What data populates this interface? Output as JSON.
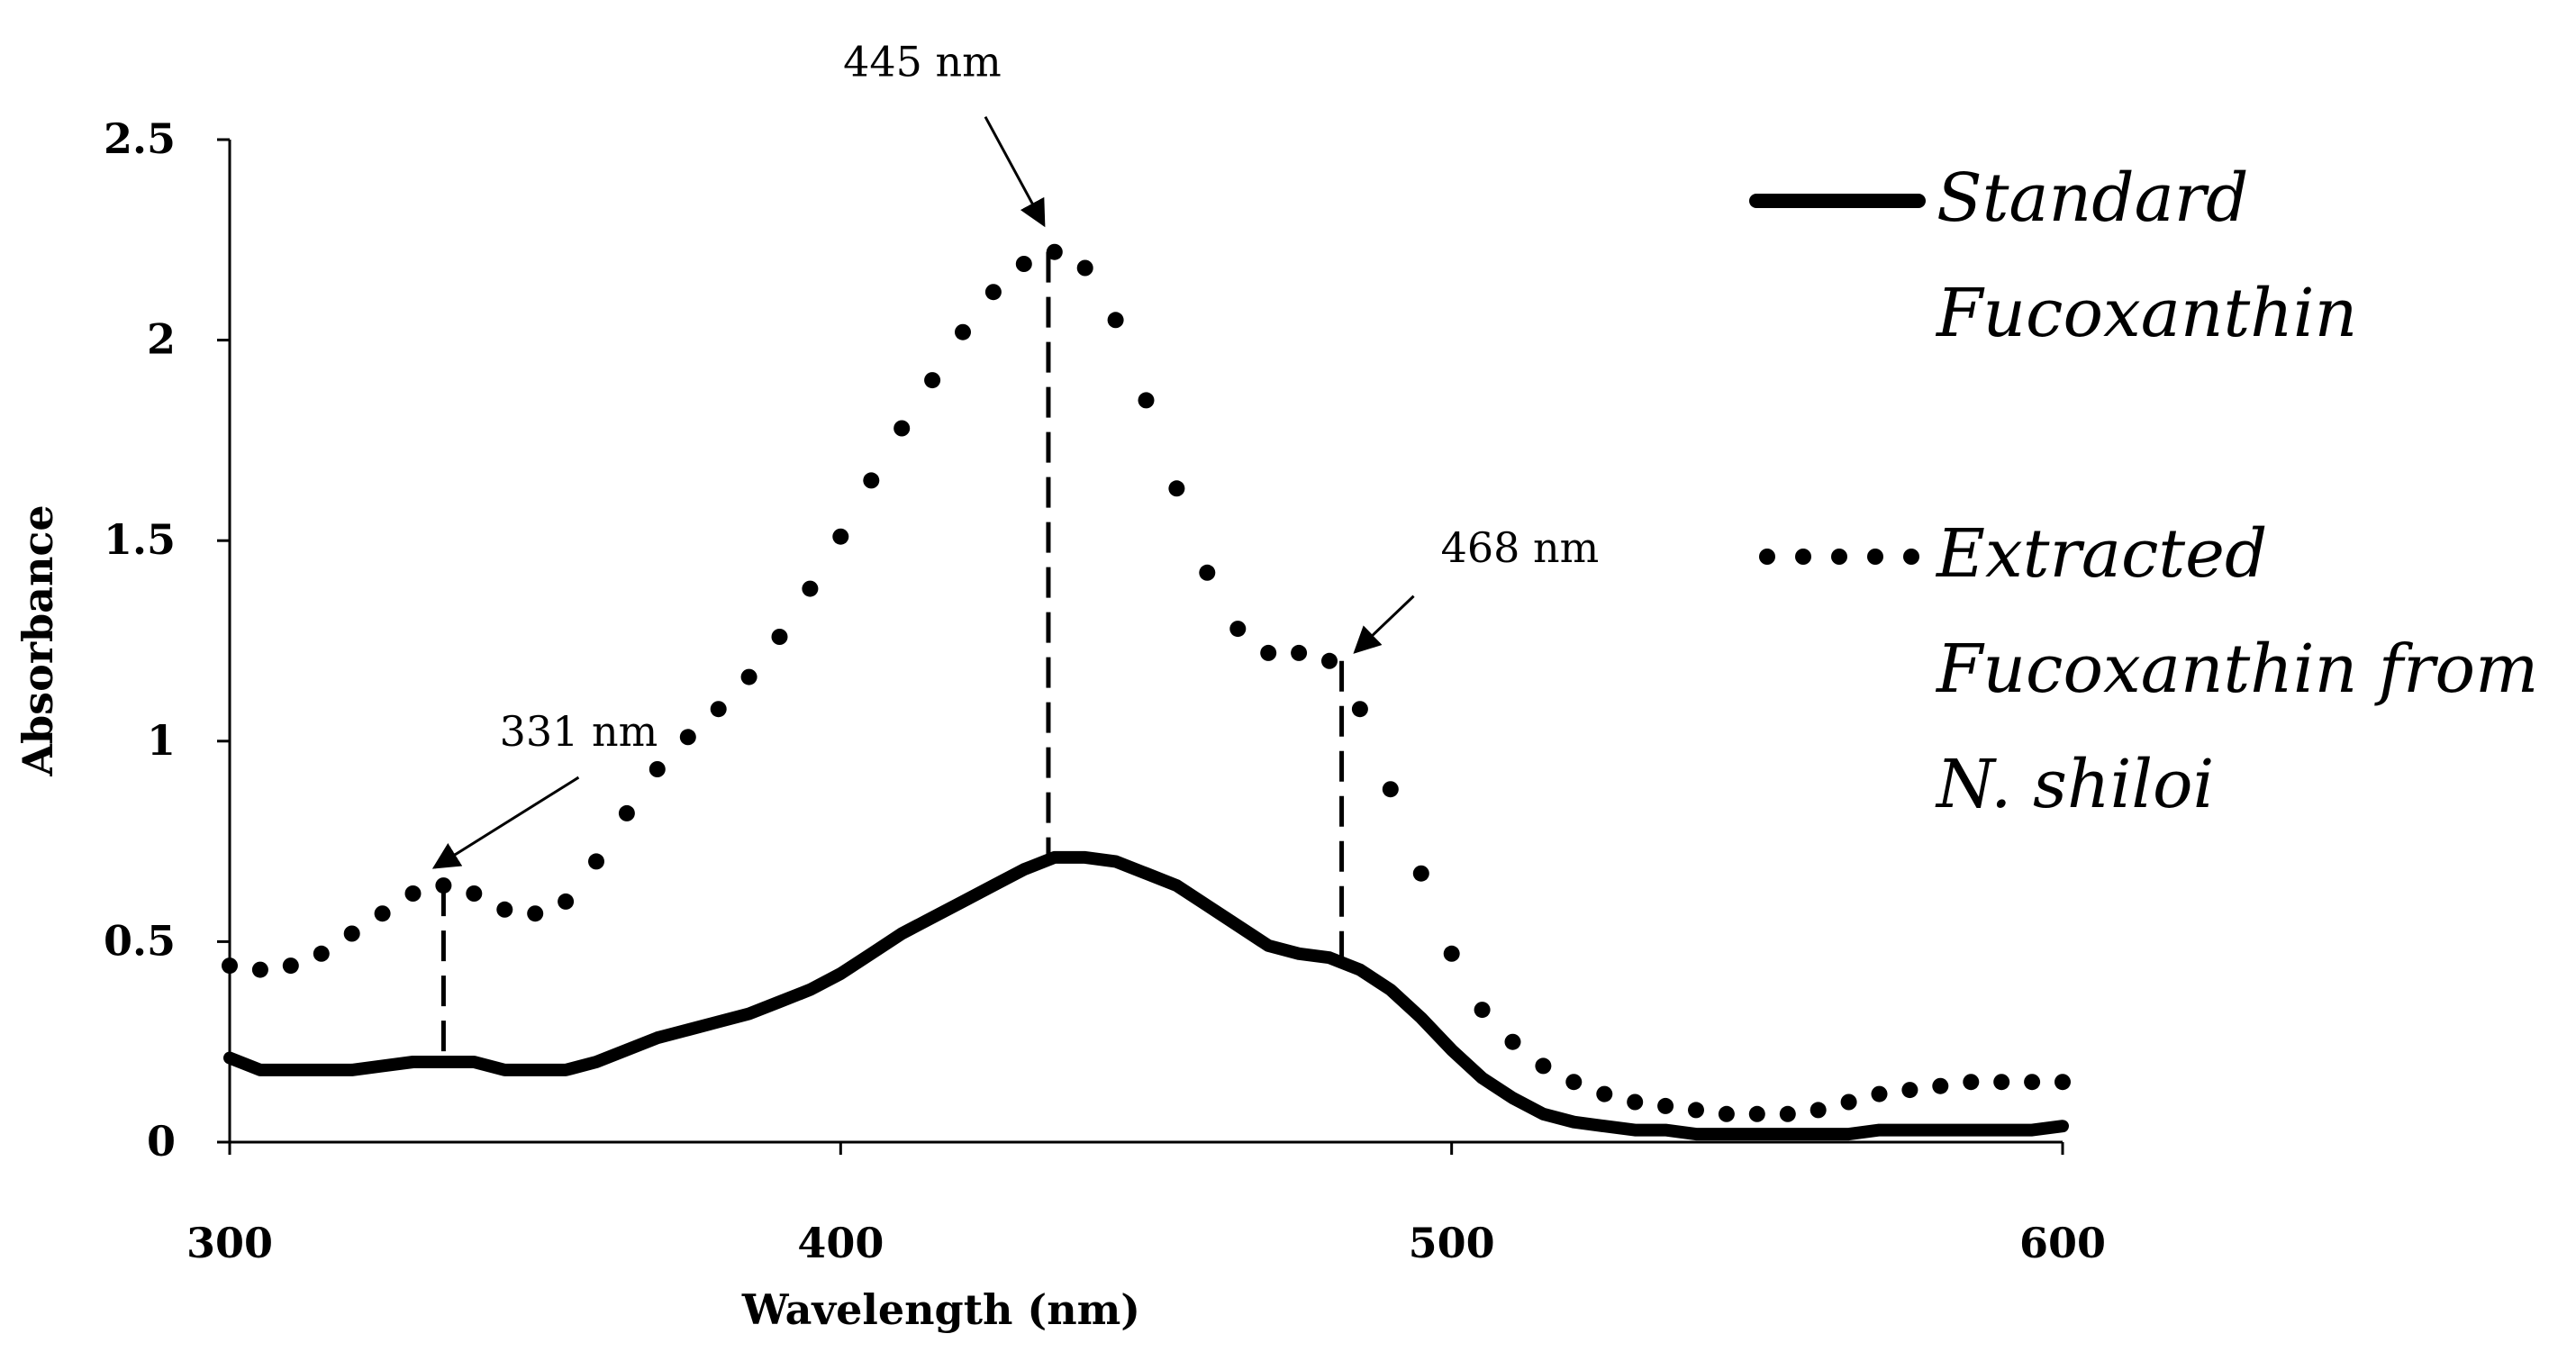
{
  "chart_data": {
    "type": "line",
    "title": "",
    "xlabel": "Wavelength (nm)",
    "ylabel": "Absorbance",
    "xlim": [
      300,
      600
    ],
    "ylim": [
      0,
      2.5
    ],
    "xticks": [
      {
        "value": 300,
        "label": "300"
      },
      {
        "value": 400,
        "label": "400"
      },
      {
        "value": 500,
        "label": "500"
      },
      {
        "value": 600,
        "label": "600"
      }
    ],
    "yticks": [
      {
        "value": 0,
        "label": "0"
      },
      {
        "value": 0.5,
        "label": "0.5"
      },
      {
        "value": 1,
        "label": "1"
      },
      {
        "value": 1.5,
        "label": "1.5"
      },
      {
        "value": 2,
        "label": "2"
      },
      {
        "value": 2.5,
        "label": "2.5"
      }
    ],
    "grid": false,
    "legend_position": "right",
    "series": [
      {
        "name": "Standard Fucoxanthin",
        "legend_lines": [
          "Standard",
          "Fucoxanthin"
        ],
        "style": "solid",
        "color": "#000000",
        "x": [
          300,
          305,
          310,
          315,
          320,
          325,
          330,
          335,
          340,
          345,
          350,
          355,
          360,
          365,
          370,
          375,
          380,
          385,
          390,
          395,
          400,
          405,
          410,
          415,
          420,
          425,
          430,
          435,
          440,
          445,
          450,
          455,
          460,
          465,
          470,
          475,
          480,
          485,
          490,
          495,
          500,
          505,
          510,
          515,
          520,
          525,
          530,
          535,
          540,
          545,
          550,
          555,
          560,
          565,
          570,
          575,
          580,
          585,
          590,
          595,
          600
        ],
        "y": [
          0.21,
          0.18,
          0.18,
          0.18,
          0.18,
          0.19,
          0.2,
          0.2,
          0.2,
          0.18,
          0.18,
          0.18,
          0.2,
          0.23,
          0.26,
          0.28,
          0.3,
          0.32,
          0.35,
          0.38,
          0.42,
          0.47,
          0.52,
          0.56,
          0.6,
          0.64,
          0.68,
          0.71,
          0.71,
          0.7,
          0.67,
          0.64,
          0.59,
          0.54,
          0.49,
          0.47,
          0.46,
          0.43,
          0.38,
          0.31,
          0.23,
          0.16,
          0.11,
          0.07,
          0.05,
          0.04,
          0.03,
          0.03,
          0.02,
          0.02,
          0.02,
          0.02,
          0.02,
          0.02,
          0.03,
          0.03,
          0.03,
          0.03,
          0.03,
          0.03,
          0.04
        ]
      },
      {
        "name": "Extracted Fucoxanthin from N. shiloi",
        "legend_lines": [
          "Extracted",
          "Fucoxanthin from",
          "N. shiloi"
        ],
        "style": "dotted",
        "color": "#000000",
        "x": [
          300,
          305,
          310,
          315,
          320,
          325,
          330,
          335,
          340,
          345,
          350,
          355,
          360,
          365,
          370,
          375,
          380,
          385,
          390,
          395,
          400,
          405,
          410,
          415,
          420,
          425,
          430,
          435,
          440,
          445,
          450,
          455,
          460,
          465,
          470,
          475,
          480,
          485,
          490,
          495,
          500,
          505,
          510,
          515,
          520,
          525,
          530,
          535,
          540,
          545,
          550,
          555,
          560,
          565,
          570,
          575,
          580,
          585,
          590,
          595,
          600
        ],
        "y": [
          0.44,
          0.43,
          0.44,
          0.47,
          0.52,
          0.57,
          0.62,
          0.64,
          0.62,
          0.58,
          0.57,
          0.6,
          0.7,
          0.82,
          0.93,
          1.01,
          1.08,
          1.16,
          1.26,
          1.38,
          1.51,
          1.65,
          1.78,
          1.9,
          2.02,
          2.12,
          2.19,
          2.22,
          2.18,
          2.05,
          1.85,
          1.63,
          1.42,
          1.28,
          1.22,
          1.22,
          1.2,
          1.08,
          0.88,
          0.67,
          0.47,
          0.33,
          0.25,
          0.19,
          0.15,
          0.12,
          0.1,
          0.09,
          0.08,
          0.07,
          0.07,
          0.07,
          0.08,
          0.1,
          0.12,
          0.13,
          0.14,
          0.15,
          0.15,
          0.15,
          0.15
        ]
      }
    ],
    "annotations": [
      {
        "text": "331 nm",
        "x": 335,
        "y": 0.64
      },
      {
        "text": "445 nm",
        "x": 434,
        "y": 2.22
      },
      {
        "text": "468 nm",
        "x": 482,
        "y": 1.2
      }
    ]
  }
}
